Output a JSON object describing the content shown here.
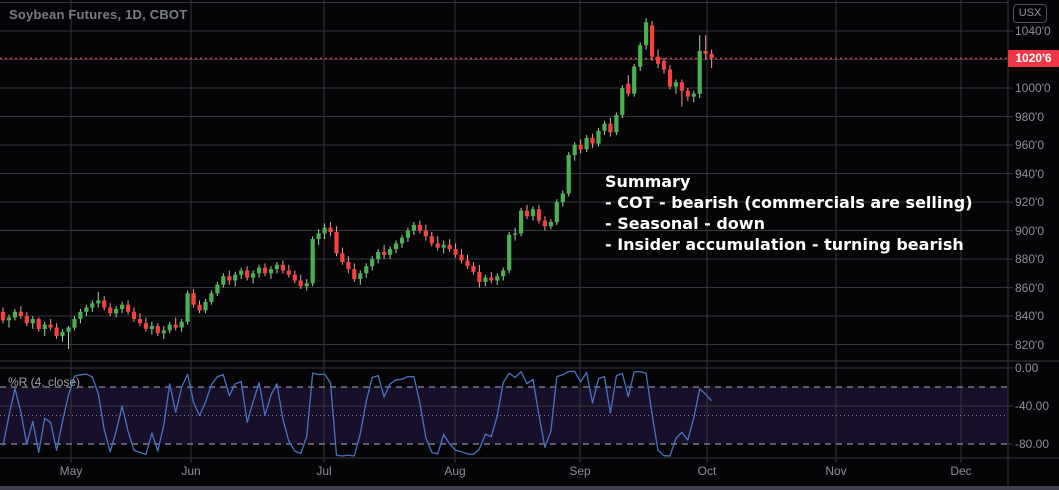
{
  "header": {
    "title": "Soybean Futures, 1D, CBOT",
    "unit_button": "USX"
  },
  "indicator_pane": {
    "label": "%R (4, close)",
    "axis_labels": [
      "0.00",
      "-40.00",
      "-80.00"
    ]
  },
  "annotation": {
    "lines": [
      "Summary",
      "- COT - bearish (commercials are selling)",
      "- Seasonal - down",
      "- Insider accumulation - turning bearish"
    ]
  },
  "price_axis": {
    "labels": [
      "1040'0",
      "1020'0",
      "1000'0",
      "980'0",
      "960'0",
      "940'0",
      "920'0",
      "900'0",
      "880'0",
      "860'0",
      "840'0",
      "820'0"
    ],
    "last_price": "1020'6"
  },
  "time_axis": {
    "months": [
      "May",
      "Jun",
      "Jul",
      "Aug",
      "Sep",
      "Oct",
      "Nov",
      "Dec"
    ]
  },
  "colors": {
    "background": "#050507",
    "grid": "#35373c",
    "up_body": "#4caf50",
    "up_wick": "#a5d6a7",
    "down_body": "#f4433f",
    "down_wick": "#ef9a9a",
    "last_price_accent": "#f23645",
    "wr_line": "#4a72c2",
    "wr_band_fill": "#171028",
    "wr_dashed_level": "#a9a9bd",
    "wr_dotted_level": "#86869a",
    "axis_text": "#8b8f99"
  },
  "chart_data": {
    "type": "candlestick",
    "title": "Soybean Futures",
    "interval": "1D",
    "exchange": "CBOT",
    "unit": "USX (US cents)",
    "price_axis_range": [
      815,
      1062
    ],
    "visible_months": [
      "May",
      "Jun",
      "Jul",
      "Aug",
      "Sep",
      "Oct",
      "Nov",
      "Dec"
    ],
    "last_price": 1020.75,
    "last_price_label": "1020'6",
    "candles_ohlc": [
      [
        843,
        846,
        835,
        837
      ],
      [
        837,
        841,
        832,
        839
      ],
      [
        839,
        845,
        837,
        843
      ],
      [
        843,
        847,
        838,
        840
      ],
      [
        840,
        843,
        833,
        835
      ],
      [
        835,
        840,
        831,
        838
      ],
      [
        838,
        839,
        829,
        831
      ],
      [
        831,
        836,
        826,
        834
      ],
      [
        834,
        838,
        830,
        832
      ],
      [
        832,
        835,
        824,
        826
      ],
      [
        826,
        831,
        822,
        829
      ],
      [
        829,
        833,
        817,
        832
      ],
      [
        832,
        840,
        830,
        838
      ],
      [
        838,
        845,
        835,
        843
      ],
      [
        843,
        848,
        840,
        846
      ],
      [
        846,
        851,
        843,
        849
      ],
      [
        849,
        857,
        846,
        851
      ],
      [
        851,
        854,
        844,
        846
      ],
      [
        846,
        849,
        840,
        842
      ],
      [
        842,
        847,
        839,
        845
      ],
      [
        845,
        850,
        842,
        848
      ],
      [
        848,
        851,
        841,
        843
      ],
      [
        843,
        846,
        836,
        838
      ],
      [
        838,
        842,
        833,
        835
      ],
      [
        835,
        839,
        829,
        831
      ],
      [
        831,
        836,
        827,
        833
      ],
      [
        833,
        835,
        826,
        828
      ],
      [
        828,
        833,
        824,
        830
      ],
      [
        830,
        836,
        828,
        834
      ],
      [
        834,
        839,
        830,
        832
      ],
      [
        832,
        838,
        829,
        836
      ],
      [
        836,
        858,
        834,
        856
      ],
      [
        856,
        859,
        846,
        848
      ],
      [
        848,
        851,
        842,
        844
      ],
      [
        844,
        852,
        842,
        850
      ],
      [
        850,
        858,
        848,
        856
      ],
      [
        856,
        864,
        854,
        862
      ],
      [
        862,
        870,
        860,
        868
      ],
      [
        868,
        872,
        862,
        865
      ],
      [
        865,
        871,
        861,
        869
      ],
      [
        869,
        874,
        866,
        872
      ],
      [
        872,
        875,
        865,
        867
      ],
      [
        867,
        872,
        863,
        870
      ],
      [
        870,
        876,
        867,
        874
      ],
      [
        874,
        877,
        868,
        870
      ],
      [
        870,
        875,
        866,
        873
      ],
      [
        873,
        878,
        870,
        876
      ],
      [
        876,
        879,
        870,
        872
      ],
      [
        872,
        876,
        867,
        869
      ],
      [
        869,
        872,
        863,
        865
      ],
      [
        865,
        869,
        859,
        861
      ],
      [
        861,
        866,
        858,
        863
      ],
      [
        863,
        896,
        861,
        894
      ],
      [
        894,
        901,
        890,
        898
      ],
      [
        898,
        905,
        894,
        902
      ],
      [
        902,
        906,
        896,
        899
      ],
      [
        899,
        903,
        882,
        884
      ],
      [
        884,
        888,
        876,
        878
      ],
      [
        878,
        882,
        870,
        873
      ],
      [
        873,
        877,
        864,
        866
      ],
      [
        866,
        872,
        862,
        870
      ],
      [
        870,
        877,
        867,
        875
      ],
      [
        875,
        882,
        872,
        880
      ],
      [
        880,
        887,
        877,
        885
      ],
      [
        885,
        890,
        880,
        883
      ],
      [
        883,
        889,
        880,
        887
      ],
      [
        887,
        893,
        884,
        891
      ],
      [
        891,
        897,
        888,
        895
      ],
      [
        895,
        902,
        892,
        900
      ],
      [
        900,
        906,
        897,
        904
      ],
      [
        904,
        907,
        898,
        900
      ],
      [
        900,
        904,
        893,
        896
      ],
      [
        896,
        899,
        889,
        891
      ],
      [
        891,
        896,
        886,
        888
      ],
      [
        888,
        893,
        884,
        890
      ],
      [
        890,
        894,
        885,
        887
      ],
      [
        887,
        891,
        881,
        883
      ],
      [
        883,
        887,
        877,
        879
      ],
      [
        879,
        883,
        873,
        875
      ],
      [
        875,
        878,
        869,
        871
      ],
      [
        871,
        876,
        860,
        864
      ],
      [
        864,
        869,
        861,
        867
      ],
      [
        867,
        871,
        863,
        865
      ],
      [
        865,
        870,
        862,
        868
      ],
      [
        868,
        874,
        865,
        872
      ],
      [
        872,
        899,
        870,
        897
      ],
      [
        897,
        902,
        893,
        898
      ],
      [
        898,
        916,
        896,
        914
      ],
      [
        914,
        918,
        908,
        910
      ],
      [
        910,
        917,
        907,
        915
      ],
      [
        915,
        918,
        905,
        907
      ],
      [
        907,
        910,
        900,
        903
      ],
      [
        903,
        908,
        901,
        906
      ],
      [
        906,
        922,
        904,
        920
      ],
      [
        920,
        928,
        917,
        926
      ],
      [
        926,
        955,
        924,
        953
      ],
      [
        953,
        962,
        949,
        960
      ],
      [
        960,
        964,
        954,
        957
      ],
      [
        957,
        967,
        955,
        965
      ],
      [
        965,
        968,
        958,
        961
      ],
      [
        961,
        972,
        959,
        970
      ],
      [
        970,
        977,
        967,
        975
      ],
      [
        975,
        979,
        966,
        969
      ],
      [
        969,
        983,
        967,
        981
      ],
      [
        981,
        1002,
        979,
        1000
      ],
      [
        1003,
        1009,
        994,
        996
      ],
      [
        996,
        1017,
        994,
        1015
      ],
      [
        1015,
        1032,
        1012,
        1030
      ],
      [
        1030,
        1049,
        1027,
        1046
      ],
      [
        1044,
        1047,
        1019,
        1022
      ],
      [
        1022,
        1027,
        1014,
        1017
      ],
      [
        1019,
        1021,
        1010,
        1013
      ],
      [
        1013,
        1016,
        999,
        1001
      ],
      [
        1001,
        1006,
        996,
        1004
      ],
      [
        1004,
        1006,
        987,
        998
      ],
      [
        998,
        1000,
        991,
        994
      ],
      [
        994,
        998,
        990,
        996
      ],
      [
        996,
        1037,
        993,
        1026
      ],
      [
        1026,
        1037,
        1020,
        1024
      ],
      [
        1024,
        1027,
        1014,
        1020.75
      ]
    ],
    "indicator": {
      "type": "williams_percent_r",
      "label": "%R (4, close)",
      "period": 4,
      "source": "close",
      "levels": {
        "overbought": -20,
        "middle": -50,
        "oversold": -80
      },
      "axis_ticks": [
        0,
        -40,
        -80
      ]
    }
  }
}
